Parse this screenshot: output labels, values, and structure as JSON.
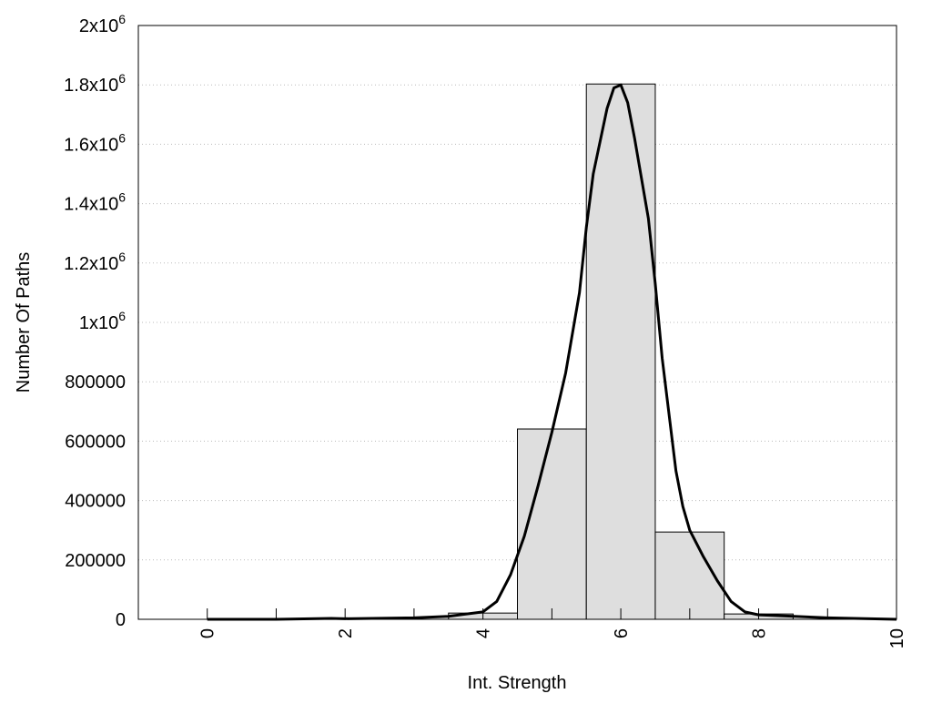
{
  "chart_data": {
    "type": "bar",
    "title": "",
    "xlabel": "Int. Strength",
    "ylabel": "Number Of Paths",
    "xlim": [
      -1,
      10
    ],
    "ylim": [
      0,
      2000000
    ],
    "grid": "horizontal dotted",
    "bar_color": "#dedede",
    "line_color": "#000000",
    "x_ticks": [
      0,
      1,
      2,
      3,
      4,
      5,
      6,
      7,
      8,
      9,
      10
    ],
    "x_tick_labels": [
      {
        "value": 0,
        "label": "0"
      },
      {
        "value": 2,
        "label": "2"
      },
      {
        "value": 4,
        "label": "4"
      },
      {
        "value": 6,
        "label": "6"
      },
      {
        "value": 8,
        "label": "8"
      },
      {
        "value": 10,
        "label": "10"
      }
    ],
    "y_tick_labels": [
      {
        "value": 0,
        "label": "0",
        "sup": ""
      },
      {
        "value": 200000,
        "label": "200000",
        "sup": ""
      },
      {
        "value": 400000,
        "label": "400000",
        "sup": ""
      },
      {
        "value": 600000,
        "label": "600000",
        "sup": ""
      },
      {
        "value": 800000,
        "label": "800000",
        "sup": ""
      },
      {
        "value": 1000000,
        "label": "1x10",
        "sup": "6"
      },
      {
        "value": 1200000,
        "label": "1.2x10",
        "sup": "6"
      },
      {
        "value": 1400000,
        "label": "1.4x10",
        "sup": "6"
      },
      {
        "value": 1600000,
        "label": "1.6x10",
        "sup": "6"
      },
      {
        "value": 1800000,
        "label": "1.8x10",
        "sup": "6"
      },
      {
        "value": 2000000,
        "label": "2x10",
        "sup": "6"
      }
    ],
    "bars": [
      {
        "x": 4,
        "value": 21000
      },
      {
        "x": 5,
        "value": 641000
      },
      {
        "x": 6,
        "value": 1803000
      },
      {
        "x": 7,
        "value": 294000
      },
      {
        "x": 8,
        "value": 18000
      }
    ],
    "bar_width": 1,
    "curve": [
      [
        0,
        0
      ],
      [
        1,
        0
      ],
      [
        1.8,
        3000
      ],
      [
        2,
        2000
      ],
      [
        3,
        5000
      ],
      [
        3.5,
        10000
      ],
      [
        4,
        25000
      ],
      [
        4.2,
        60000
      ],
      [
        4.4,
        150000
      ],
      [
        4.6,
        280000
      ],
      [
        4.8,
        450000
      ],
      [
        5,
        630000
      ],
      [
        5.2,
        830000
      ],
      [
        5.4,
        1100000
      ],
      [
        5.5,
        1320000
      ],
      [
        5.6,
        1500000
      ],
      [
        5.8,
        1720000
      ],
      [
        5.9,
        1790000
      ],
      [
        6,
        1800000
      ],
      [
        6.1,
        1740000
      ],
      [
        6.2,
        1620000
      ],
      [
        6.4,
        1350000
      ],
      [
        6.5,
        1130000
      ],
      [
        6.6,
        880000
      ],
      [
        6.8,
        500000
      ],
      [
        6.9,
        380000
      ],
      [
        7,
        300000
      ],
      [
        7.2,
        210000
      ],
      [
        7.4,
        130000
      ],
      [
        7.6,
        60000
      ],
      [
        7.8,
        25000
      ],
      [
        8,
        15000
      ],
      [
        9,
        5000
      ],
      [
        10,
        0
      ]
    ]
  }
}
